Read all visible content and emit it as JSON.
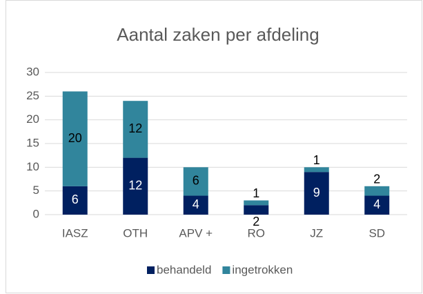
{
  "chart_data": {
    "type": "stacked_bar",
    "title": "Aantal zaken per afdeling",
    "categories": [
      "IASZ",
      "OTH",
      "APV +",
      "RO",
      "JZ",
      "SD"
    ],
    "series": [
      {
        "name": "behandeld",
        "color": "#002060",
        "values": [
          6,
          12,
          4,
          2,
          9,
          4
        ]
      },
      {
        "name": "ingetrokken",
        "color": "#31859c",
        "values": [
          20,
          12,
          6,
          1,
          1,
          2
        ]
      }
    ],
    "ylim": [
      0,
      30
    ],
    "yticks": [
      0,
      5,
      10,
      15,
      20,
      25,
      30
    ],
    "grid": true,
    "legend": "bottom"
  }
}
